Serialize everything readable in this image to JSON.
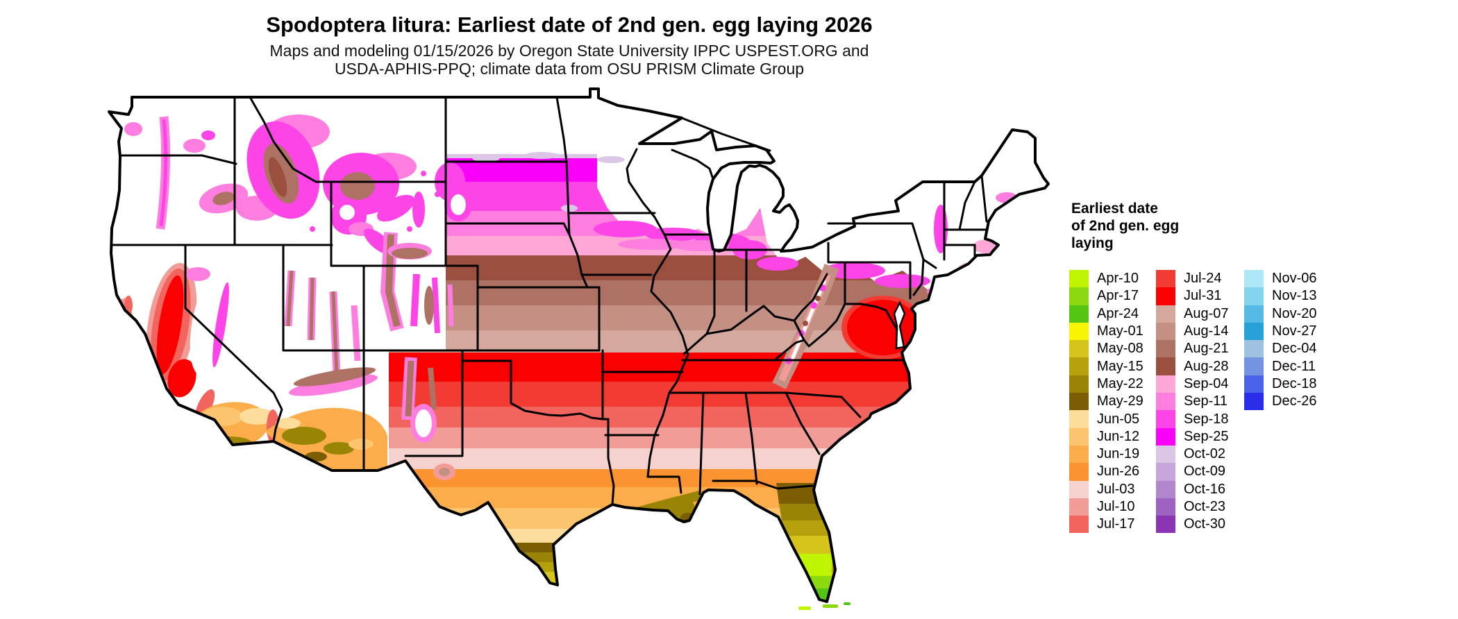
{
  "title": "Spodoptera litura: Earliest date of 2nd gen. egg laying 2026",
  "subtitle_line1": "Maps and modeling 01/15/2026 by Oregon State University IPPC USPEST.ORG and",
  "subtitle_line2": "USDA-APHIS-PPQ; climate data from OSU PRISM Climate Group",
  "legend": {
    "title_lines": [
      "Earliest date",
      "of 2nd gen. egg",
      "laying"
    ],
    "columns": [
      {
        "entries": [
          "Apr-10",
          "Apr-17",
          "Apr-24",
          "May-01",
          "May-08",
          "May-15",
          "May-22",
          "May-29",
          "Jun-05",
          "Jun-12",
          "Jun-19",
          "Jun-26",
          "Jul-03",
          "Jul-10",
          "Jul-17"
        ]
      },
      {
        "entries": [
          "Jul-24",
          "Jul-31",
          "Aug-07",
          "Aug-14",
          "Aug-21",
          "Aug-28",
          "Sep-04",
          "Sep-11",
          "Sep-18",
          "Sep-25",
          "Oct-02",
          "Oct-09",
          "Oct-16",
          "Oct-23",
          "Oct-30"
        ]
      },
      {
        "entries": [
          "Nov-06",
          "Nov-13",
          "Nov-20",
          "Nov-27",
          "Dec-04",
          "Dec-11",
          "Dec-18",
          "Dec-26"
        ]
      }
    ]
  },
  "colors": {
    "Apr-10": "#BFF501",
    "Apr-17": "#8BD90E",
    "Apr-24": "#54C513",
    "May-01": "#F8F503",
    "May-08": "#D5C41A",
    "May-15": "#B5A10C",
    "May-22": "#9A8406",
    "May-29": "#7B5D04",
    "Jun-05": "#FCDD9C",
    "Jun-12": "#FCC46C",
    "Jun-19": "#FBAC4B",
    "Jun-26": "#FA9330",
    "Jul-03": "#F5D2CE",
    "Jul-10": "#F19C96",
    "Jul-17": "#F2645E",
    "Jul-24": "#F23B33",
    "Jul-31": "#FB0000",
    "Aug-07": "#D4A89C",
    "Aug-14": "#C49084",
    "Aug-21": "#AE7265",
    "Aug-28": "#9B4F3F",
    "Sep-04": "#FFA8D8",
    "Sep-11": "#FD7EDF",
    "Sep-18": "#FC44E7",
    "Sep-25": "#F900F9",
    "Oct-02": "#DCC6E6",
    "Oct-09": "#C8A5DA",
    "Oct-16": "#B286CC",
    "Oct-23": "#9D63C0",
    "Oct-30": "#8A35B3",
    "Nov-06": "#AEE8F8",
    "Nov-13": "#84D4EE",
    "Nov-20": "#55BAE4",
    "Nov-27": "#28A0D8",
    "Dec-04": "#9FC2E0",
    "Dec-11": "#7493E0",
    "Dec-18": "#4B63E8",
    "Dec-26": "#2A2EE8",
    "outline": "#000000",
    "nodata": "#ffffff"
  }
}
